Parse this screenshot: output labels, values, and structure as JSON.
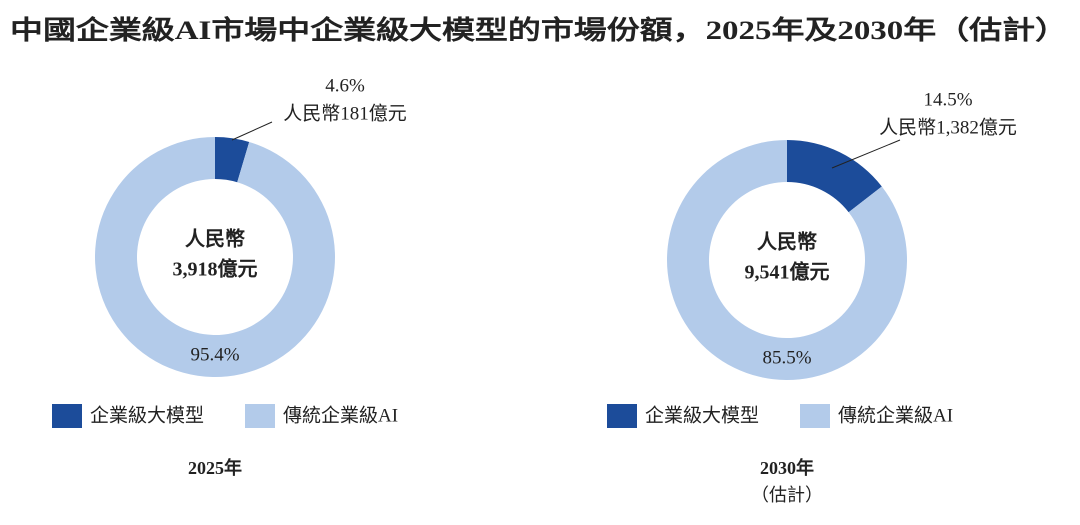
{
  "title": "中國企業級AI市場中企業級大模型的市場份額，2025年及2030年（估計）",
  "chart_data": [
    {
      "type": "pie",
      "donut": true,
      "categories": [
        "企業級大模型",
        "傳統企業級AI"
      ],
      "values": [
        4.6,
        95.4
      ],
      "value_labels": [
        "4.6%",
        "95.4%"
      ],
      "colors": [
        "#1c4c9a",
        "#b3cbea"
      ],
      "annotation": "人民幣181億元",
      "center_text": [
        "人民幣",
        "3,918億元"
      ],
      "caption": [
        "2025年"
      ]
    },
    {
      "type": "pie",
      "donut": true,
      "categories": [
        "企業級大模型",
        "傳統企業級AI"
      ],
      "values": [
        14.5,
        85.5
      ],
      "value_labels": [
        "14.5%",
        "85.5%"
      ],
      "colors": [
        "#1c4c9a",
        "#b3cbea"
      ],
      "annotation": "人民幣1,382億元",
      "center_text": [
        "人民幣",
        "9,541億元"
      ],
      "caption": [
        "2030年",
        "（估計）"
      ]
    }
  ]
}
